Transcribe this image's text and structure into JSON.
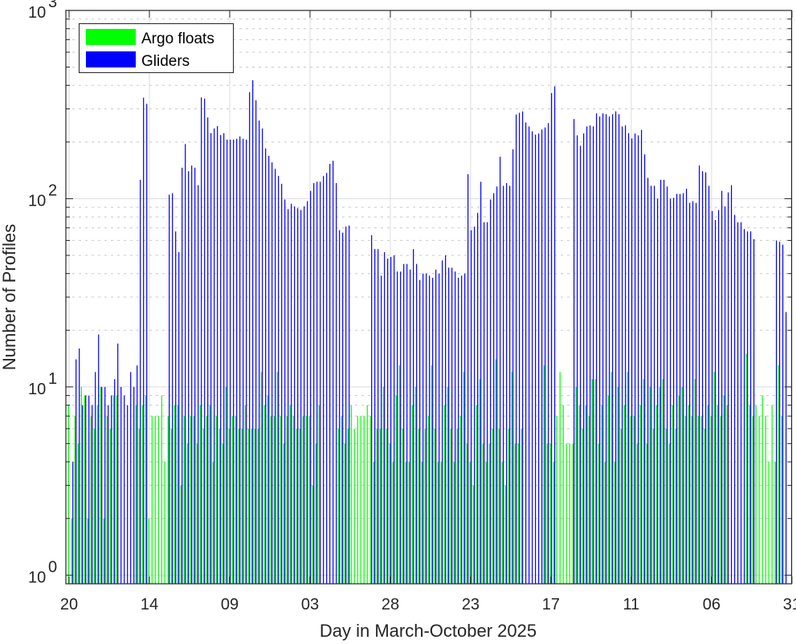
{
  "chart_data": {
    "type": "bar",
    "title": "",
    "xlabel": "Day in March-October 2025",
    "ylabel": "Number of Profiles",
    "yscale": "log",
    "ylim": [
      0.9,
      1000
    ],
    "xlim": [
      -1,
      224.9
    ],
    "grid": true,
    "legend_position": "top-left",
    "x_ticks": [
      {
        "day": 0,
        "label": "20"
      },
      {
        "day": 25,
        "label": "14"
      },
      {
        "day": 50,
        "label": "09"
      },
      {
        "day": 75,
        "label": "03"
      },
      {
        "day": 100,
        "label": "28"
      },
      {
        "day": 125,
        "label": "23"
      },
      {
        "day": 150,
        "label": "17"
      },
      {
        "day": 175,
        "label": "11"
      },
      {
        "day": 200,
        "label": "06"
      },
      {
        "day": 225,
        "label": "31"
      }
    ],
    "y_ticks": [
      {
        "value": 1,
        "base": "10",
        "exp": "0"
      },
      {
        "value": 10,
        "base": "10",
        "exp": "1"
      },
      {
        "value": 100,
        "base": "10",
        "exp": "2"
      },
      {
        "value": 1000,
        "base": "10",
        "exp": "3"
      }
    ],
    "x_note": "day index 0 = 20 March 2025, one bar group per day",
    "series": [
      {
        "name": "Argo floats",
        "color": "#00ff00",
        "values": [
          8,
          2,
          7,
          5,
          10,
          9,
          2,
          7,
          6,
          8,
          10,
          2,
          7,
          6,
          9,
          9,
          0,
          0,
          0,
          0,
          0,
          8,
          6,
          8,
          9,
          2,
          7,
          7,
          7,
          9,
          4,
          7,
          6,
          8,
          8,
          3,
          7,
          5,
          7,
          7,
          5,
          8,
          6,
          7,
          8,
          4,
          7,
          6,
          5,
          10,
          6,
          7,
          7,
          6,
          6,
          8,
          6,
          6,
          6,
          6,
          12,
          8,
          9,
          7,
          7,
          12,
          7,
          5,
          7,
          8,
          7,
          6,
          6,
          7,
          7,
          7,
          3,
          5,
          8,
          0,
          0,
          0,
          0,
          0,
          6,
          7,
          5,
          6,
          8,
          6,
          7,
          7,
          7,
          8,
          7,
          4,
          6,
          6,
          10,
          6,
          5,
          4,
          9,
          13,
          6,
          4,
          4,
          8,
          10,
          6,
          4,
          6,
          7,
          13,
          6,
          4,
          4,
          8,
          10,
          6,
          4,
          6,
          7,
          12,
          5,
          4,
          3,
          8,
          11,
          5,
          4,
          5,
          6,
          14,
          6,
          4,
          3,
          6,
          12,
          5,
          5,
          6,
          0,
          0,
          0,
          0,
          0,
          0,
          13,
          5,
          5,
          4,
          7,
          12,
          8,
          5,
          5,
          5,
          10,
          8,
          6,
          8,
          7,
          11,
          11,
          5,
          8,
          4,
          9,
          12,
          4,
          10,
          6,
          8,
          12,
          7,
          7,
          5,
          8,
          11,
          5,
          10,
          6,
          8,
          10,
          11,
          6,
          5,
          8,
          6,
          9,
          10,
          7,
          8,
          7,
          11,
          7,
          7,
          6,
          8,
          7,
          12,
          8,
          7,
          9,
          8,
          0,
          0,
          0,
          0,
          0,
          15,
          8,
          7,
          8,
          7,
          9,
          7,
          4,
          8,
          4,
          13,
          7
        ]
      },
      {
        "name": "Gliders",
        "color": "#0000ff",
        "values": [
          0,
          4,
          14,
          16,
          8,
          9,
          9,
          8,
          12,
          19,
          10,
          10,
          8,
          9,
          11,
          17,
          10,
          9,
          8,
          12,
          10,
          13,
          126,
          344,
          319,
          0,
          0,
          0,
          0,
          0,
          0,
          105,
          107,
          67,
          52,
          146,
          195,
          140,
          150,
          146,
          118,
          345,
          340,
          270,
          223,
          236,
          243,
          218,
          223,
          206,
          206,
          206,
          208,
          214,
          208,
          206,
          368,
          426,
          333,
          260,
          236,
          185,
          169,
          156,
          144,
          132,
          120,
          99,
          88,
          94,
          91,
          89,
          87,
          91,
          97,
          110,
          121,
          123,
          123,
          132,
          137,
          153,
          159,
          121,
          68,
          66,
          71,
          72,
          0,
          0,
          0,
          0,
          0,
          0,
          64,
          54,
          54,
          39,
          52,
          48,
          49,
          50,
          41,
          41,
          45,
          45,
          42,
          54,
          45,
          37,
          40,
          40,
          39,
          38,
          42,
          40,
          47,
          50,
          43,
          43,
          41,
          38,
          39,
          40,
          135,
          68,
          71,
          84,
          123,
          75,
          75,
          99,
          107,
          116,
          167,
          117,
          121,
          117,
          183,
          280,
          286,
          291,
          254,
          242,
          228,
          219,
          222,
          233,
          239,
          252,
          364,
          395,
          0,
          0,
          0,
          0,
          0,
          265,
          217,
          191,
          222,
          242,
          245,
          242,
          284,
          273,
          284,
          281,
          273,
          281,
          291,
          281,
          242,
          245,
          223,
          209,
          222,
          217,
          232,
          172,
          129,
          117,
          117,
          100,
          126,
          126,
          116,
          100,
          101,
          106,
          106,
          107,
          113,
          95,
          97,
          95,
          150,
          140,
          138,
          117,
          86,
          77,
          87,
          110,
          91,
          108,
          118,
          82,
          75,
          75,
          69,
          67,
          67,
          61,
          0,
          0,
          0,
          0,
          0,
          0,
          60,
          59,
          57,
          25
        ]
      }
    ]
  },
  "legend": {
    "items": [
      {
        "label": "Argo floats",
        "color": "#00ff00"
      },
      {
        "label": "Gliders",
        "color": "#0000ff"
      }
    ]
  }
}
